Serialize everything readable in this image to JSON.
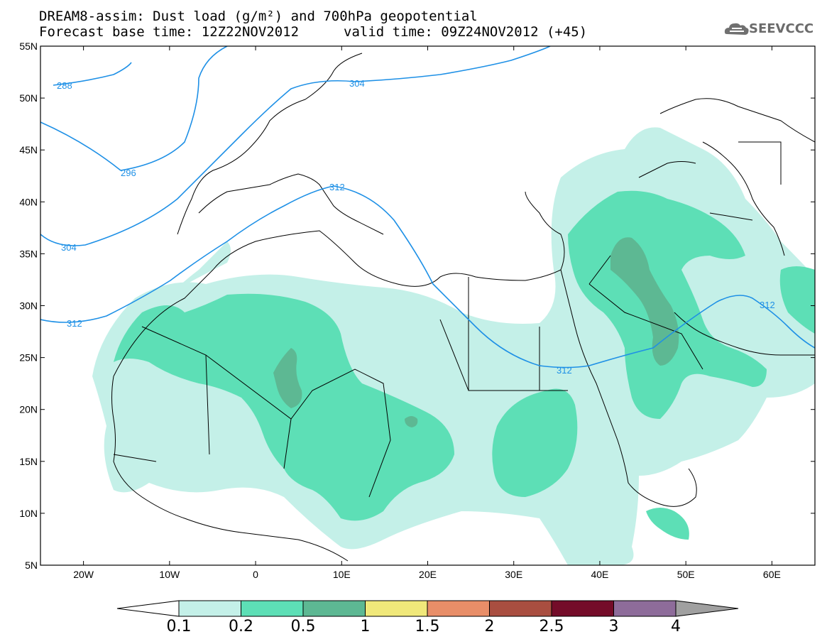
{
  "header": {
    "line1": "DREAM8-assim: Dust load (g/m²) and 700hPa geopotential",
    "line2a": "Forecast base time: 12Z22NOV2012",
    "line2b": "valid time: 09Z24NOV2012 (+45)",
    "logo_text": "SEEVCCC"
  },
  "axes": {
    "lon_labels": [
      "20W",
      "10W",
      "0",
      "10E",
      "20E",
      "30E",
      "40E",
      "50E",
      "60E"
    ],
    "lat_labels": [
      "55N",
      "50N",
      "45N",
      "40N",
      "35N",
      "30N",
      "25N",
      "20N",
      "15N",
      "10N",
      "5N"
    ],
    "lon_range": [
      -25,
      65
    ],
    "lat_range": [
      5,
      55
    ]
  },
  "contours": {
    "color": "#1e90e6",
    "labels": [
      "288",
      "296",
      "304",
      "304",
      "312",
      "312",
      "312",
      "312"
    ]
  },
  "colorbar": {
    "levels": [
      "0.1",
      "0.2",
      "0.5",
      "1",
      "1.5",
      "2",
      "2.5",
      "3",
      "4"
    ],
    "colors": [
      "#c4f0e8",
      "#5ddfb6",
      "#5db893",
      "#f0e87a",
      "#e88e68",
      "#a94e40",
      "#740c29",
      "#8e6c9a"
    ],
    "under_color": "#ffffff",
    "over_color": "#a0a0a0"
  },
  "shading_colors": {
    "light": "#c4f0e8",
    "medium": "#5ddfb6",
    "dark": "#5db893"
  }
}
